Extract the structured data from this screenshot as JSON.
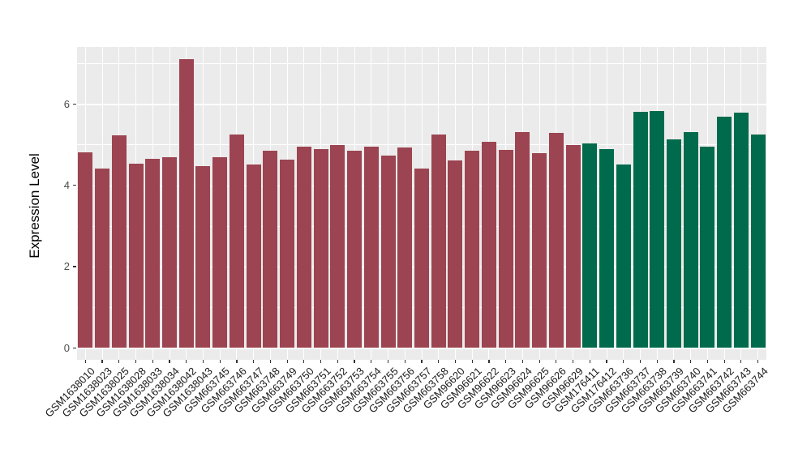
{
  "chart_data": {
    "type": "bar",
    "title": "",
    "xlabel": "",
    "ylabel": "Expression Level",
    "ylim": [
      0,
      7.4
    ],
    "yticks": [
      0,
      2,
      4,
      6
    ],
    "minor_gridlines": [
      1,
      3,
      5,
      7
    ],
    "grid": "on",
    "legend_position": "none",
    "colors": {
      "maroon": "#9C4451",
      "green": "#006B4C"
    },
    "bars": [
      {
        "label": "GSM1638010",
        "value": 4.81,
        "group": "maroon"
      },
      {
        "label": "GSM1638023",
        "value": 4.42,
        "group": "maroon"
      },
      {
        "label": "GSM1638025",
        "value": 5.23,
        "group": "maroon"
      },
      {
        "label": "GSM1638028",
        "value": 4.54,
        "group": "maroon"
      },
      {
        "label": "GSM1638033",
        "value": 4.66,
        "group": "maroon"
      },
      {
        "label": "GSM1638034",
        "value": 4.7,
        "group": "maroon"
      },
      {
        "label": "GSM1638042",
        "value": 7.1,
        "group": "maroon"
      },
      {
        "label": "GSM1638043",
        "value": 4.48,
        "group": "maroon"
      },
      {
        "label": "GSM663745",
        "value": 4.7,
        "group": "maroon"
      },
      {
        "label": "GSM663746",
        "value": 5.25,
        "group": "maroon"
      },
      {
        "label": "GSM663747",
        "value": 4.52,
        "group": "maroon"
      },
      {
        "label": "GSM663748",
        "value": 4.84,
        "group": "maroon"
      },
      {
        "label": "GSM663749",
        "value": 4.64,
        "group": "maroon"
      },
      {
        "label": "GSM663750",
        "value": 4.94,
        "group": "maroon"
      },
      {
        "label": "GSM663751",
        "value": 4.89,
        "group": "maroon"
      },
      {
        "label": "GSM663752",
        "value": 4.98,
        "group": "maroon"
      },
      {
        "label": "GSM663753",
        "value": 4.84,
        "group": "maroon"
      },
      {
        "label": "GSM663754",
        "value": 4.94,
        "group": "maroon"
      },
      {
        "label": "GSM663755",
        "value": 4.72,
        "group": "maroon"
      },
      {
        "label": "GSM663756",
        "value": 4.92,
        "group": "maroon"
      },
      {
        "label": "GSM663757",
        "value": 4.41,
        "group": "maroon"
      },
      {
        "label": "GSM663758",
        "value": 5.25,
        "group": "maroon"
      },
      {
        "label": "GSM96620",
        "value": 4.62,
        "group": "maroon"
      },
      {
        "label": "GSM96621",
        "value": 4.84,
        "group": "maroon"
      },
      {
        "label": "GSM96622",
        "value": 5.07,
        "group": "maroon"
      },
      {
        "label": "GSM96623",
        "value": 4.87,
        "group": "maroon"
      },
      {
        "label": "GSM96624",
        "value": 5.3,
        "group": "maroon"
      },
      {
        "label": "GSM96625",
        "value": 4.78,
        "group": "maroon"
      },
      {
        "label": "GSM96626",
        "value": 5.29,
        "group": "maroon"
      },
      {
        "label": "GSM96629",
        "value": 4.99,
        "group": "maroon"
      },
      {
        "label": "GSM176411",
        "value": 5.03,
        "group": "green"
      },
      {
        "label": "GSM176412",
        "value": 4.89,
        "group": "green"
      },
      {
        "label": "GSM663736",
        "value": 4.52,
        "group": "green"
      },
      {
        "label": "GSM663737",
        "value": 5.8,
        "group": "green"
      },
      {
        "label": "GSM663738",
        "value": 5.83,
        "group": "green"
      },
      {
        "label": "GSM663739",
        "value": 5.12,
        "group": "green"
      },
      {
        "label": "GSM663740",
        "value": 5.31,
        "group": "green"
      },
      {
        "label": "GSM663741",
        "value": 4.95,
        "group": "green"
      },
      {
        "label": "GSM663742",
        "value": 5.69,
        "group": "green"
      },
      {
        "label": "GSM663743",
        "value": 5.79,
        "group": "green"
      },
      {
        "label": "GSM663744",
        "value": 5.25,
        "group": "green"
      }
    ]
  },
  "style": {
    "panel_background": "#EBEBEB",
    "gridline_color": "#ffffff",
    "tick_color": "#333333",
    "tick_label_color": "#4D4D4D",
    "axis_title_color": "#000000",
    "figure_background": "#ffffff"
  }
}
